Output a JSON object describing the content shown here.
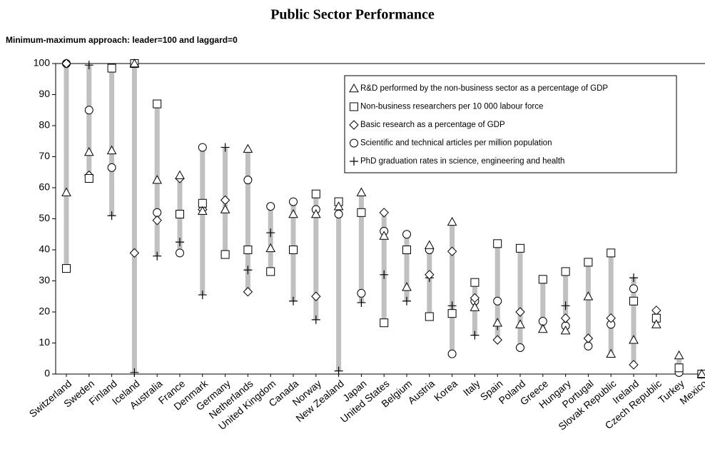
{
  "chart_data": {
    "type": "range-dot",
    "title": "Public Sector Performance",
    "subtitle": "Minimum-maximum approach: leader=100 and laggard=0",
    "categories": [
      "Switzerland",
      "Sweden",
      "Finland",
      "Iceland",
      "Australia",
      "France",
      "Denmark",
      "Germany",
      "Netherlands",
      "United Kingdom",
      "Canada",
      "Norway",
      "New Zealand",
      "Japan",
      "United States",
      "Belgium",
      "Austria",
      "Korea",
      "Italy",
      "Spain",
      "Poland",
      "Greece",
      "Hungary",
      "Portugal",
      "Slovak Republic",
      "Ireland",
      "Czech Republic",
      "Turkey",
      "Mexico"
    ],
    "series": [
      {
        "name": "R&D performed by the non-business sector as a percentage of GDP",
        "marker": "triangle",
        "color": "#000000",
        "values": [
          58.5,
          71.5,
          72,
          100,
          62.5,
          64,
          52.5,
          53,
          72.5,
          40.5,
          51.5,
          51.5,
          54,
          58.5,
          44.5,
          28,
          41.5,
          49,
          21.5,
          16.5,
          16,
          14.5,
          14,
          25,
          6.5,
          11,
          16,
          6,
          0
        ]
      },
      {
        "name": "Non-business researchers per 10 000 labour force",
        "marker": "square",
        "color": "#000000",
        "values": [
          34,
          63,
          98.5,
          100,
          87,
          51.5,
          55,
          38.5,
          40,
          33,
          40,
          58,
          55.5,
          52,
          16.5,
          40,
          18.5,
          19.5,
          29.5,
          42,
          40.5,
          30.5,
          33,
          36,
          39,
          23.5,
          18,
          2,
          0
        ]
      },
      {
        "name": "Basic research as a percentage of GDP",
        "marker": "diamond",
        "color": "#000000",
        "values": [
          100,
          64,
          null,
          39,
          49.5,
          63,
          53,
          56,
          26.5,
          null,
          null,
          25,
          null,
          null,
          52,
          null,
          32,
          39.5,
          24.5,
          11,
          20,
          null,
          18,
          11.5,
          18,
          3,
          20.5,
          null,
          0
        ]
      },
      {
        "name": "Scientific and technical articles per million population",
        "marker": "circle",
        "color": "#000000",
        "values": [
          100,
          85,
          66.5,
          null,
          52,
          39,
          73,
          38.5,
          62.5,
          54,
          55.5,
          53,
          51.5,
          26,
          46,
          45,
          40,
          6.5,
          23.5,
          23.5,
          8.5,
          17,
          15.5,
          9,
          16,
          27.5,
          null,
          0.5,
          0
        ]
      },
      {
        "name": "PhD graduation rates in science, engineering and health",
        "marker": "plus",
        "color": "#000000",
        "values": [
          100,
          99.5,
          51,
          0.5,
          38,
          42.5,
          25.5,
          73,
          33.5,
          45.5,
          23.5,
          17.5,
          1,
          23,
          32,
          23.5,
          31,
          22,
          12.5,
          15.5,
          null,
          null,
          22,
          null,
          null,
          31,
          null,
          null,
          0
        ]
      }
    ],
    "range_color": "#c0c0c0",
    "ylim": [
      0,
      100
    ],
    "yticks": [
      0,
      10,
      20,
      30,
      40,
      50,
      60,
      70,
      80,
      90,
      100
    ],
    "grid": false
  }
}
